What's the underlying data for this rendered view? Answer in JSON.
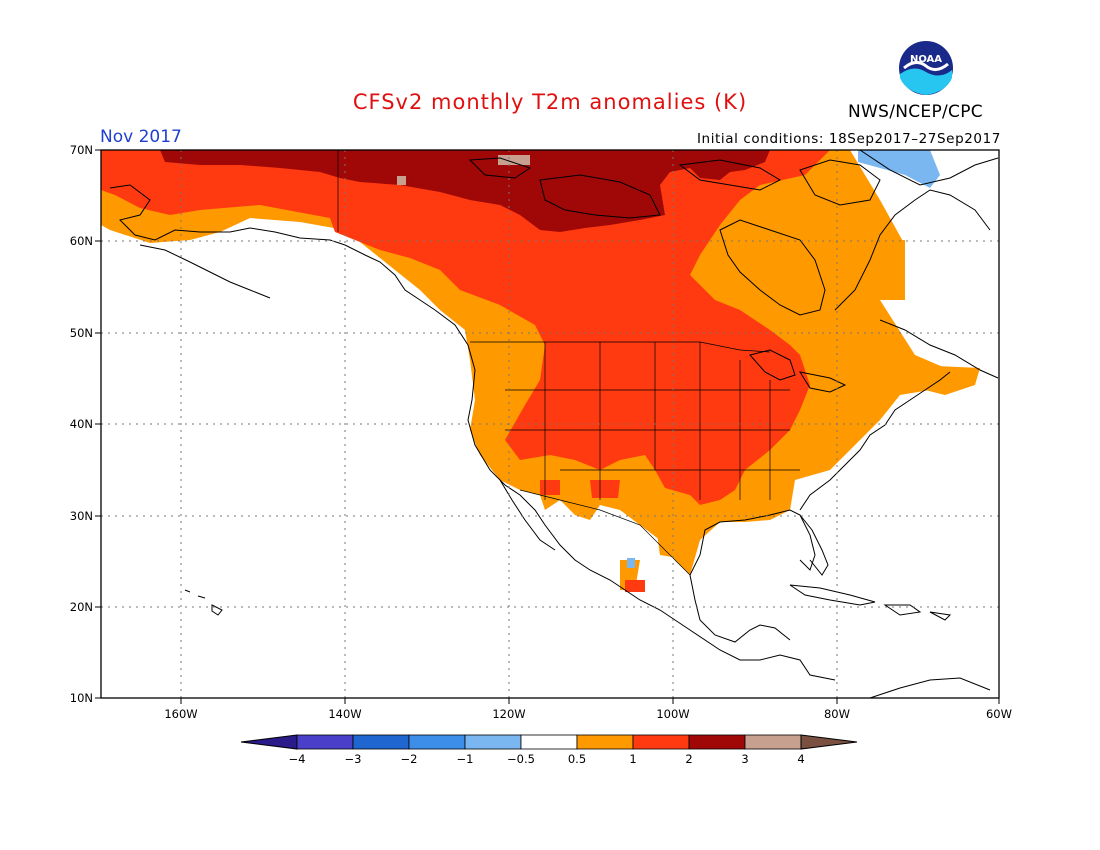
{
  "title": "CFSv2 monthly T2m anomalies (K)",
  "month": "Nov 2017",
  "initial_conditions": "Initial conditions: 18Sep2017–27Sep2017",
  "agency": "NWS/NCEP/CPC",
  "logo_text": "NOAA",
  "lat_labels": [
    "70N",
    "60N",
    "50N",
    "40N",
    "30N",
    "20N",
    "10N"
  ],
  "lon_labels": [
    "160W",
    "140W",
    "120W",
    "100W",
    "80W",
    "60W"
  ],
  "colorbar": {
    "labels": [
      "−4",
      "−3",
      "−2",
      "−1",
      "−0.5",
      "0.5",
      "1",
      "2",
      "3",
      "4"
    ],
    "colors": [
      "#2a1a8a",
      "#4a3fc8",
      "#1f66d0",
      "#3c8ee8",
      "#7ab6f0",
      "#ffffff",
      "#ff9900",
      "#ff3a10",
      "#a00808",
      "#c8a090",
      "#7a5040"
    ]
  },
  "colors": {
    "land_outline": "#000000",
    "grid": "#777777"
  }
}
